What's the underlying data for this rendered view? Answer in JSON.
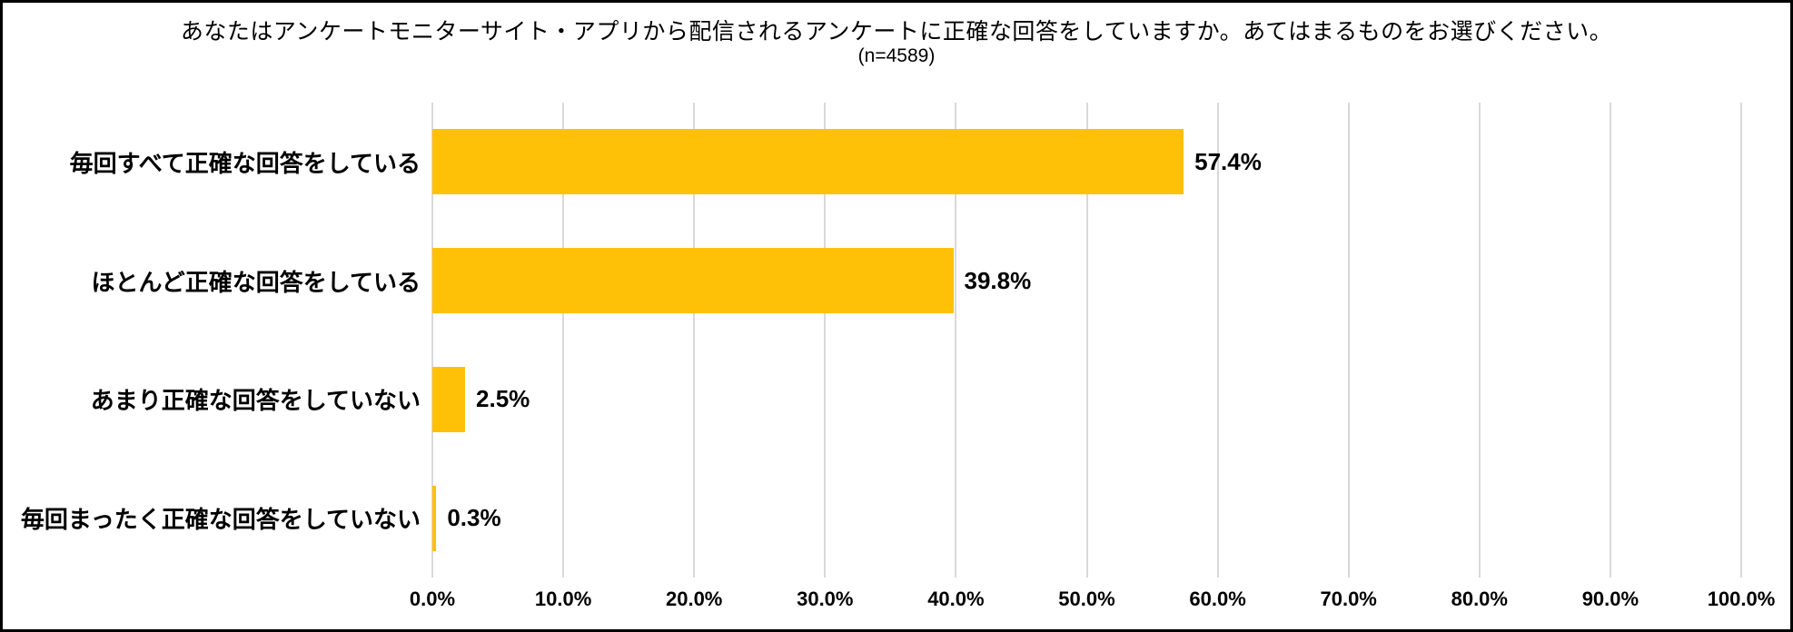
{
  "title": "あなたはアンケートモニターサイト・アプリから配信されるアンケートに正確な回答をしていますか。あてはまるものをお選びください。",
  "subtitle": "(n=4589)",
  "chart_data": {
    "type": "bar",
    "orientation": "horizontal",
    "title": "あなたはアンケートモニターサイト・アプリから配信されるアンケートに正確な回答をしていますか。あてはまるものをお選びください。",
    "subtitle": "(n=4589)",
    "sample_size": 4589,
    "categories": [
      "毎回すべて正確な回答をしている",
      "ほとんど正確な回答をしている",
      "あまり正確な回答をしていない",
      "毎回まったく正確な回答をしていない"
    ],
    "values": [
      57.4,
      39.8,
      2.5,
      0.3
    ],
    "labels": [
      "57.4%",
      "39.8%",
      "2.5%",
      "0.3%"
    ],
    "x_ticks": [
      "0.0%",
      "10.0%",
      "20.0%",
      "30.0%",
      "40.0%",
      "50.0%",
      "60.0%",
      "70.0%",
      "80.0%",
      "90.0%",
      "100.0%"
    ],
    "xlim": [
      0,
      100
    ],
    "xlabel": "",
    "ylabel": "",
    "grid": true,
    "legend": false,
    "bar_color": "#FFC008",
    "gridline_color": "#D9D9D9",
    "text_color": "#000000",
    "background_color": "#FFFFFF",
    "border_color": "#000000"
  }
}
